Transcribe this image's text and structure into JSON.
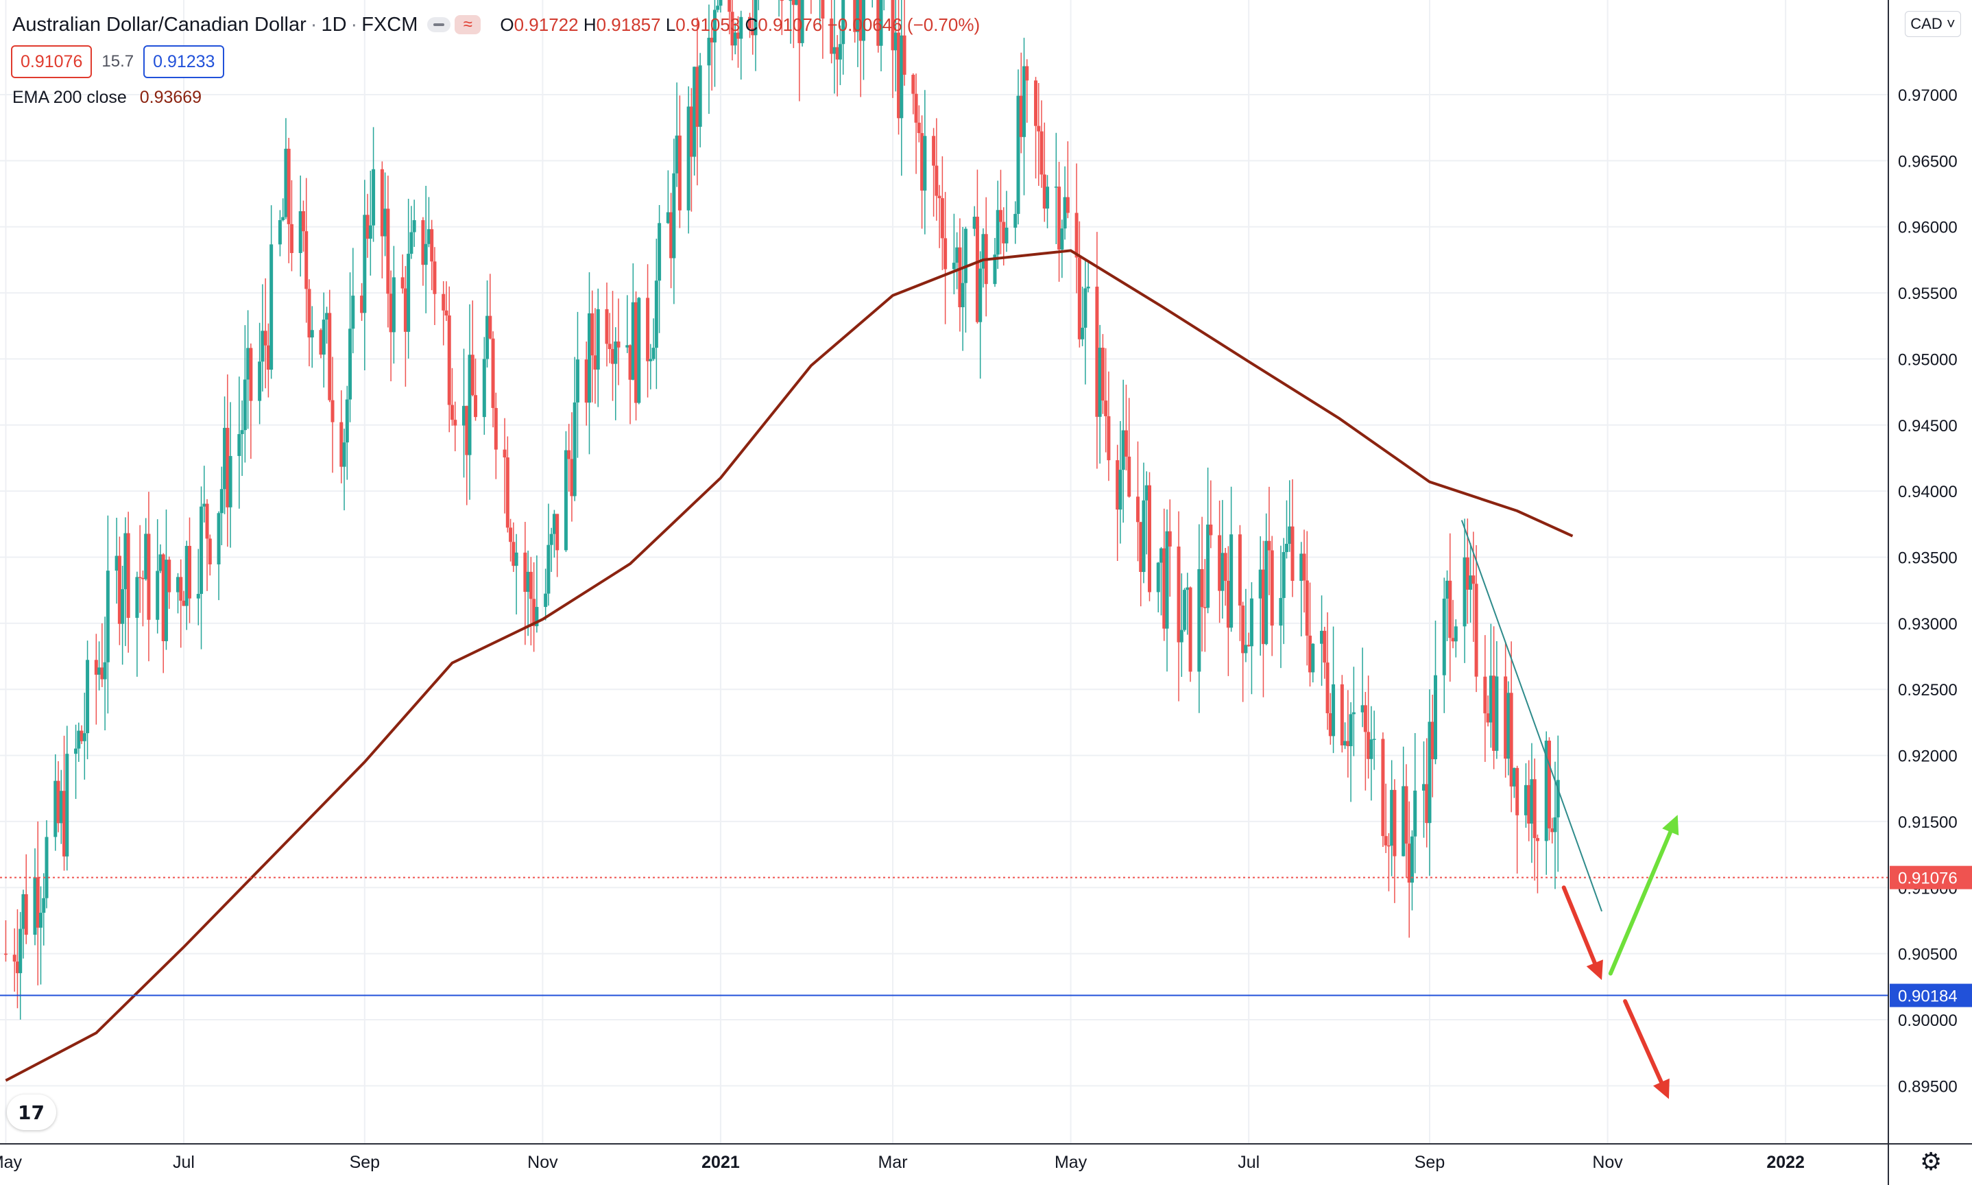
{
  "header": {
    "symbol": "Australian Dollar/Canadian Dollar",
    "interval": "1D",
    "exchange": "FXCM",
    "open_label": "O",
    "open": "0.91722",
    "high_label": "H",
    "high": "0.91857",
    "low_label": "L",
    "low": "0.91053",
    "close_label": "C",
    "close": "0.91076",
    "change": "−0.00646 (−0.70%)"
  },
  "quote": {
    "bid": "0.91076",
    "spread": "15.7",
    "ask": "0.91233"
  },
  "indicator": {
    "label": "EMA 200 close",
    "value": "0.93669"
  },
  "currency_button": "CAD",
  "colors": {
    "up": "#26a69a",
    "down": "#ef5350",
    "ema": "#8b2310",
    "hline": "#2151d9",
    "trendline": "#2e8b8b",
    "arrow_red": "#e63b2e",
    "arrow_green": "#6ee03a",
    "grid": "#eef0f4"
  },
  "chart_data": {
    "type": "candlestick",
    "timeframe": "1D",
    "ylim": [
      0.8915,
      0.979
    ],
    "y_ticks": [
      "0.97000",
      "0.96500",
      "0.96000",
      "0.95500",
      "0.95000",
      "0.94500",
      "0.94000",
      "0.93500",
      "0.93000",
      "0.92500",
      "0.92000",
      "0.91500",
      "0.91000",
      "0.90500",
      "0.90000",
      "0.89500"
    ],
    "x_ticks": [
      "May",
      "Jul",
      "Sep",
      "Nov",
      "2021",
      "Mar",
      "May",
      "Jul",
      "Sep",
      "Nov",
      "2022"
    ],
    "last_price": "0.91076",
    "horizontal_line": "0.90184",
    "ema200_path": [
      {
        "date": "2020-05-01",
        "value": 0.8954
      },
      {
        "date": "2020-06-01",
        "value": 0.899
      },
      {
        "date": "2020-07-01",
        "value": 0.9055
      },
      {
        "date": "2020-08-01",
        "value": 0.9125
      },
      {
        "date": "2020-09-01",
        "value": 0.9195
      },
      {
        "date": "2020-10-01",
        "value": 0.927
      },
      {
        "date": "2020-11-01",
        "value": 0.9303
      },
      {
        "date": "2020-12-01",
        "value": 0.9345
      },
      {
        "date": "2021-01-01",
        "value": 0.941
      },
      {
        "date": "2021-02-01",
        "value": 0.9495
      },
      {
        "date": "2021-03-01",
        "value": 0.9548
      },
      {
        "date": "2021-04-01",
        "value": 0.9575
      },
      {
        "date": "2021-05-01",
        "value": 0.9582
      },
      {
        "date": "2021-06-01",
        "value": 0.954
      },
      {
        "date": "2021-07-01",
        "value": 0.9498
      },
      {
        "date": "2021-08-01",
        "value": 0.9455
      },
      {
        "date": "2021-09-01",
        "value": 0.9407
      },
      {
        "date": "2021-10-01",
        "value": 0.9385
      },
      {
        "date": "2021-10-20",
        "value": 0.9366
      }
    ],
    "price_path": [
      {
        "date": "2020-05-01",
        "value": 0.905
      },
      {
        "date": "2020-05-20",
        "value": 0.915
      },
      {
        "date": "2020-06-03",
        "value": 0.928
      },
      {
        "date": "2020-06-10",
        "value": 0.935
      },
      {
        "date": "2020-06-25",
        "value": 0.932
      },
      {
        "date": "2020-07-10",
        "value": 0.938
      },
      {
        "date": "2020-07-28",
        "value": 0.95
      },
      {
        "date": "2020-08-05",
        "value": 0.962
      },
      {
        "date": "2020-08-12",
        "value": 0.956
      },
      {
        "date": "2020-08-25",
        "value": 0.945
      },
      {
        "date": "2020-09-03",
        "value": 0.963
      },
      {
        "date": "2020-09-12",
        "value": 0.953
      },
      {
        "date": "2020-09-22",
        "value": 0.96
      },
      {
        "date": "2020-10-05",
        "value": 0.945
      },
      {
        "date": "2020-10-14",
        "value": 0.95
      },
      {
        "date": "2020-10-25",
        "value": 0.933
      },
      {
        "date": "2020-11-01",
        "value": 0.931
      },
      {
        "date": "2020-11-12",
        "value": 0.945
      },
      {
        "date": "2020-11-22",
        "value": 0.955
      },
      {
        "date": "2020-12-05",
        "value": 0.95
      },
      {
        "date": "2020-12-18",
        "value": 0.964
      },
      {
        "date": "2021-01-01",
        "value": 0.976
      },
      {
        "date": "2021-01-18",
        "value": 0.979
      },
      {
        "date": "2021-02-05",
        "value": 0.976
      },
      {
        "date": "2021-02-22",
        "value": 0.979
      },
      {
        "date": "2021-03-05",
        "value": 0.97
      },
      {
        "date": "2021-03-15",
        "value": 0.963
      },
      {
        "date": "2021-03-25",
        "value": 0.956
      },
      {
        "date": "2021-04-05",
        "value": 0.958
      },
      {
        "date": "2021-04-15",
        "value": 0.968
      },
      {
        "date": "2021-04-28",
        "value": 0.962
      },
      {
        "date": "2021-05-10",
        "value": 0.949
      },
      {
        "date": "2021-05-20",
        "value": 0.94
      },
      {
        "date": "2021-06-01",
        "value": 0.934
      },
      {
        "date": "2021-06-10",
        "value": 0.929
      },
      {
        "date": "2021-06-20",
        "value": 0.936
      },
      {
        "date": "2021-07-01",
        "value": 0.93
      },
      {
        "date": "2021-07-15",
        "value": 0.935
      },
      {
        "date": "2021-07-25",
        "value": 0.927
      },
      {
        "date": "2021-08-05",
        "value": 0.923
      },
      {
        "date": "2021-08-15",
        "value": 0.918
      },
      {
        "date": "2021-08-25",
        "value": 0.913
      },
      {
        "date": "2021-09-01",
        "value": 0.92
      },
      {
        "date": "2021-09-08",
        "value": 0.933
      },
      {
        "date": "2021-09-15",
        "value": 0.93
      },
      {
        "date": "2021-09-25",
        "value": 0.923
      },
      {
        "date": "2021-10-05",
        "value": 0.917
      },
      {
        "date": "2021-10-14",
        "value": 0.9172
      },
      {
        "date": "2021-10-16",
        "value": 0.9108
      }
    ]
  }
}
